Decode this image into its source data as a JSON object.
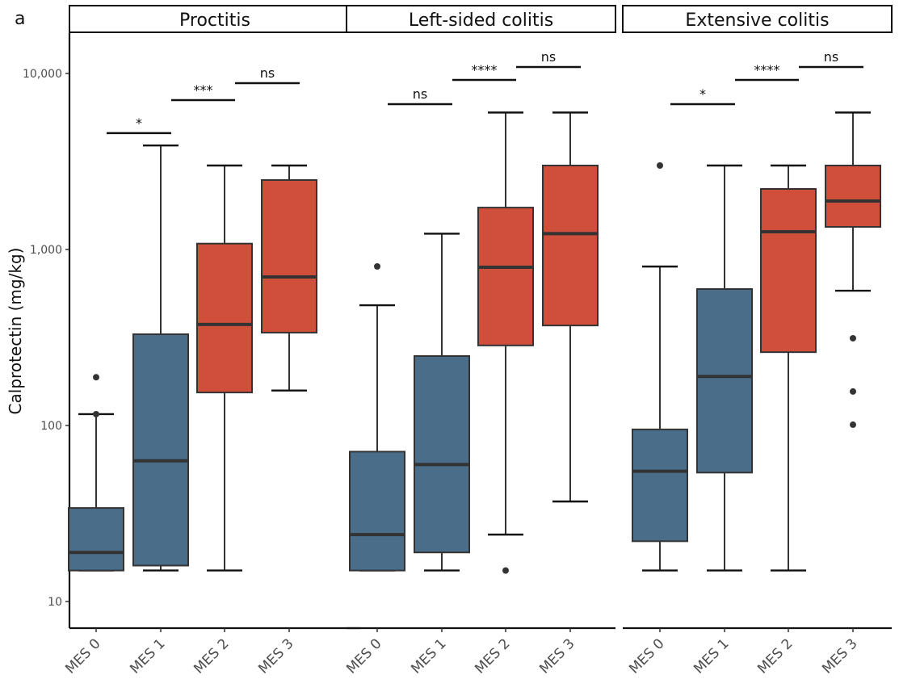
{
  "figure_label": "a",
  "chart_data": {
    "type": "boxplot",
    "title": "",
    "ylabel": "Calprotectin (mg/kg)",
    "xlabel": "",
    "yscale": "log10",
    "ylim": [
      7,
      17000
    ],
    "yticks": [
      10,
      100,
      1000,
      10000
    ],
    "ytick_labels": [
      "10",
      "100",
      "1,000",
      "10,000"
    ],
    "grid": false,
    "legend": "none",
    "colors": {
      "low": "#4A6D8A",
      "high": "#CF4F3A",
      "line": "#333333"
    },
    "categories": [
      "MES 0",
      "MES 1",
      "MES 2",
      "MES 3"
    ],
    "panels": [
      {
        "title": "Proctitis",
        "boxes": [
          {
            "category": "MES 0",
            "color_group": "low",
            "whisker_low": 15,
            "q1": 15,
            "median": 19,
            "q3": 34,
            "whisker_high": 116,
            "outliers": [
              188,
              116
            ]
          },
          {
            "category": "MES 1",
            "color_group": "low",
            "whisker_low": 15,
            "q1": 16,
            "median": 63,
            "q3": 330,
            "whisker_high": 3900,
            "outliers": []
          },
          {
            "category": "MES 2",
            "color_group": "high",
            "whisker_low": 15,
            "q1": 154,
            "median": 375,
            "q3": 1080,
            "whisker_high": 3000,
            "outliers": []
          },
          {
            "category": "MES 3",
            "color_group": "high",
            "whisker_low": 158,
            "q1": 337,
            "median": 698,
            "q3": 2480,
            "whisker_high": 3000,
            "outliers": []
          }
        ],
        "comparisons": [
          {
            "from": "MES 0",
            "to": "MES 1",
            "label": "*",
            "y": 4580
          },
          {
            "from": "MES 1",
            "to": "MES 2",
            "label": "***",
            "y": 7060
          },
          {
            "from": "MES 2",
            "to": "MES 3",
            "label": "ns",
            "y": 8810
          }
        ]
      },
      {
        "title": "Left-sided colitis",
        "boxes": [
          {
            "category": "MES 0",
            "color_group": "low",
            "whisker_low": 15,
            "q1": 15,
            "median": 24,
            "q3": 71,
            "whisker_high": 482,
            "outliers": [
              801
            ]
          },
          {
            "category": "MES 1",
            "color_group": "low",
            "whisker_low": 15,
            "q1": 19,
            "median": 60,
            "q3": 248,
            "whisker_high": 1230,
            "outliers": []
          },
          {
            "category": "MES 2",
            "color_group": "high",
            "whisker_low": 24,
            "q1": 285,
            "median": 793,
            "q3": 1730,
            "whisker_high": 6000,
            "outliers": [
              15
            ]
          },
          {
            "category": "MES 3",
            "color_group": "high",
            "whisker_low": 37,
            "q1": 370,
            "median": 1230,
            "q3": 3000,
            "whisker_high": 6000,
            "outliers": []
          }
        ],
        "comparisons": [
          {
            "from": "MES 0",
            "to": "MES 1",
            "label": "ns",
            "y": 6690
          },
          {
            "from": "MES 1",
            "to": "MES 2",
            "label": "****",
            "y": 9190
          },
          {
            "from": "MES 2",
            "to": "MES 3",
            "label": "ns",
            "y": 10880
          }
        ]
      },
      {
        "title": "Extensive colitis",
        "boxes": [
          {
            "category": "MES 0",
            "color_group": "low",
            "whisker_low": 15,
            "q1": 22,
            "median": 55,
            "q3": 95,
            "whisker_high": 800,
            "outliers": [
              3000
            ]
          },
          {
            "category": "MES 1",
            "color_group": "low",
            "whisker_low": 15,
            "q1": 54,
            "median": 190,
            "q3": 596,
            "whisker_high": 3000,
            "outliers": []
          },
          {
            "category": "MES 2",
            "color_group": "high",
            "whisker_low": 15,
            "q1": 261,
            "median": 1262,
            "q3": 2208,
            "whisker_high": 3000,
            "outliers": []
          },
          {
            "category": "MES 3",
            "color_group": "high",
            "whisker_low": 583,
            "q1": 1344,
            "median": 1884,
            "q3": 3000,
            "whisker_high": 6000,
            "outliers": [
              313,
              156,
              101
            ]
          }
        ],
        "comparisons": [
          {
            "from": "MES 0",
            "to": "MES 1",
            "label": "*",
            "y": 6690
          },
          {
            "from": "MES 1",
            "to": "MES 2",
            "label": "****",
            "y": 9190
          },
          {
            "from": "MES 2",
            "to": "MES 3",
            "label": "ns",
            "y": 10880
          }
        ]
      }
    ]
  }
}
